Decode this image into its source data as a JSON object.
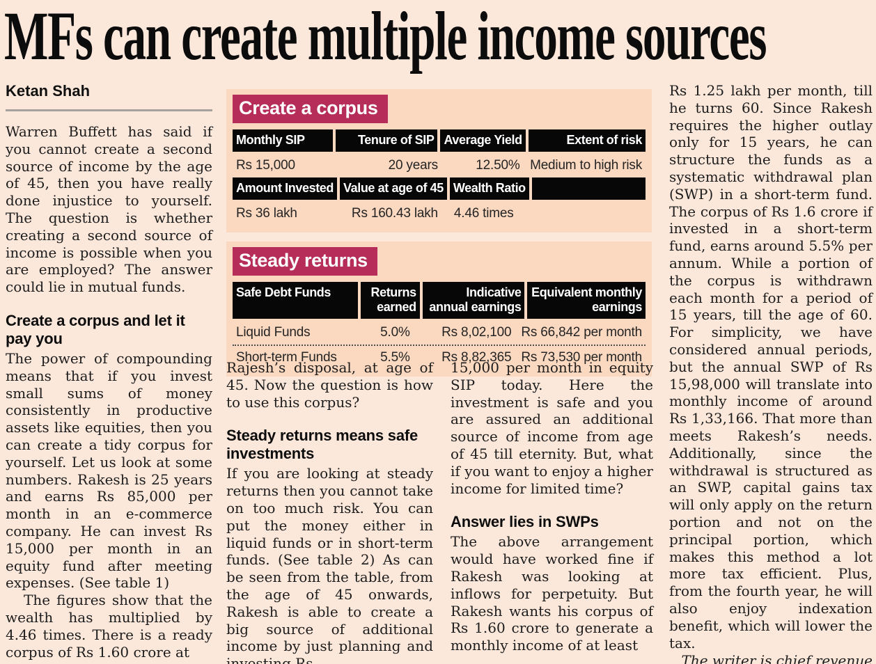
{
  "colors": {
    "accent": "#b62d59",
    "page_bg": "#fce8db",
    "table_bg": "#fbd8c0",
    "header_bar": "#070707"
  },
  "document": {
    "headline": "MFs can create multiple income sources",
    "byline": "Ketan Shah"
  },
  "col1": {
    "para1": "Warren Buffett has said if you cannot create a second source of income by the age of 45, then you have really done injustice to yourself. The question is whether creating a second source of income is possible when you are employed? The answer could lie in mutual funds.",
    "heading": "Create a corpus and let it pay you",
    "para2": "The power of compounding means that if you invest small sums of money consistently in productive assets like equities, then you can create a tidy corpus for yourself. Let us look at some numbers. Rakesh is 25 years and earns Rs 85,000 per month in an e-commerce company. He can invest Rs 15,000 per month in an equity fund after meeting expenses. (See table 1)",
    "para3": "The figures show that the wealth has multiplied by 4.46 times. There is a ready corpus of Rs 1.60 crore at"
  },
  "col2": {
    "para1": "Rajesh’s disposal, at age of 45. Now the question is how to use this corpus?",
    "heading": "Steady returns means safe investments",
    "para2": "If you are looking at steady returns then you cannot take on too much risk. You can put the money either in liquid funds or in short-term funds. (See table 2) As can be seen from the table, from the age of 45 onwards, Rakesh is able to create a big source of additional income by just planning and investing Rs"
  },
  "col3": {
    "para1": "15,000 per month in equity SIP today. Here the investment is safe and you are assured an additional source of income from age of 45 till eternity. But, what if you want to enjoy a higher income for limited time?",
    "heading": "Answer lies in SWPs",
    "para2": "The above arrangement would have worked fine if Rakesh was looking at inflows for perpetuity. But Rakesh wants his corpus of Rs 1.60 crore to generate a monthly income of at least"
  },
  "col4": {
    "para1": "Rs 1.25 lakh per month, till he turns 60. Since Rakesh requires the higher outlay only for 15 years, he can structure the funds as a systematic withdrawal plan (SWP) in a short-term fund. The corpus of Rs 1.6 crore if invested in a short-term fund, earns around 5.5% per annum. While a portion of the corpus is withdrawn each month for a period of 15 years, till the age of 60. For simplicity, we have considered annual periods, but the annual SWP of Rs 15,98,000 will translate into monthly income of around Rs 1,33,166. That more than meets Rakesh’s needs. Additionally, since the withdrawal is structured as an SWP, capital gains tax will only apply on the return portion and not on the principal portion, which makes this method a lot more tax efficient. Plus, from the fourth year, he will also enjoy indexation benefit, which will lower the tax.",
    "credit": "The writer is chief revenue officer, Angel Broking"
  },
  "table1": {
    "title": "Create a corpus",
    "row_groups": [
      {
        "headers": [
          "Monthly SIP",
          "Tenure of SIP",
          "Average Yield",
          "Extent of risk"
        ],
        "values": [
          "Rs 15,000",
          "20 years",
          "12.50%",
          "Medium to high risk"
        ]
      },
      {
        "headers": [
          "Amount Invested",
          "Value at age of 45",
          "Wealth Ratio",
          ""
        ],
        "values": [
          "Rs 36 lakh",
          "Rs 160.43 lakh",
          "4.46 times",
          ""
        ]
      }
    ]
  },
  "table2": {
    "title": "Steady returns",
    "headers": [
      "Safe Debt Funds",
      "Returns earned",
      "Indicative annual earnings",
      "Equivalent monthly earnings"
    ],
    "rows": [
      [
        "Liquid Funds",
        "5.0%",
        "Rs 8,02,100",
        "Rs 66,842 per month"
      ],
      [
        "Short-term Funds",
        "5.5%",
        "Rs 8,82,365",
        "Rs 73,530 per month"
      ]
    ]
  }
}
